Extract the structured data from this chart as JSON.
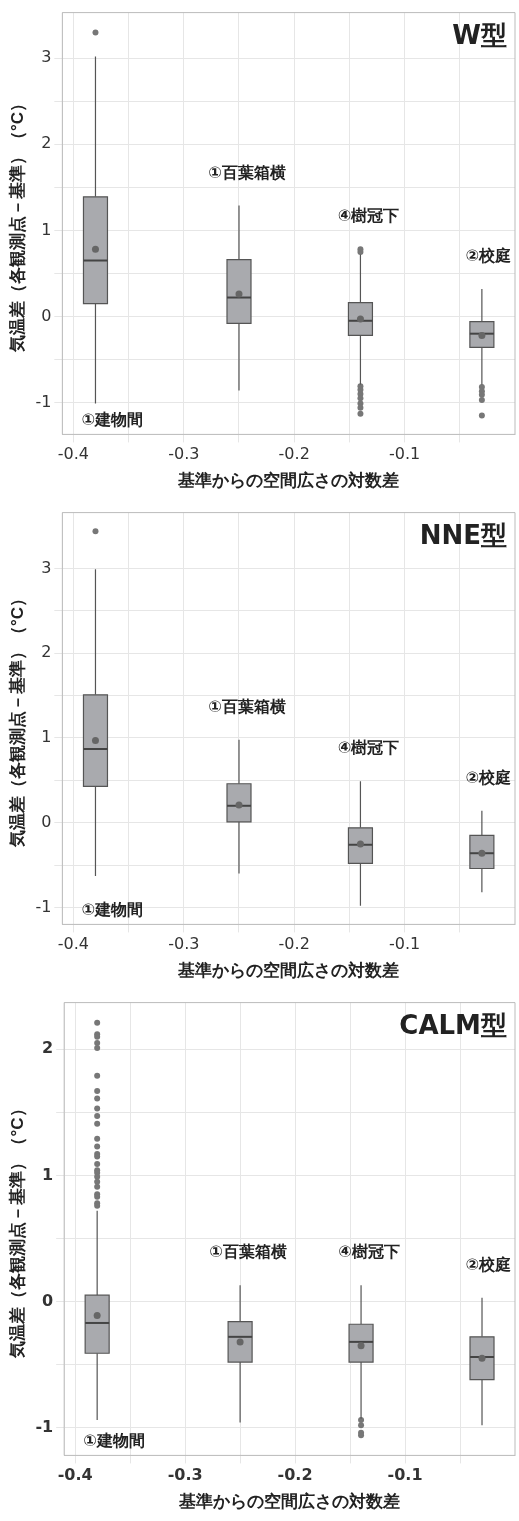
{
  "chart_data": [
    {
      "type": "box",
      "title": "W型",
      "xlabel": "基準からの空間広さの対数差",
      "ylabel": "気温差（各観測点－基準）（°C）",
      "color": "#a9aaae",
      "grid": true,
      "x": [
        -0.38,
        -0.25,
        -0.14,
        -0.03
      ],
      "boxes": [
        {
          "low": -1.01,
          "q1": 0.15,
          "median": 0.65,
          "q3": 1.39,
          "high": 3.02,
          "mean": 0.78,
          "outliers": [
            3.3
          ]
        },
        {
          "low": -0.86,
          "q1": -0.08,
          "median": 0.22,
          "q3": 0.66,
          "high": 1.29,
          "mean": 0.26
        },
        {
          "low": -0.79,
          "q1": -0.22,
          "median": -0.05,
          "q3": 0.16,
          "high": 0.72,
          "mean": -0.03,
          "outliers": [
            0.78,
            0.75,
            -0.81,
            -0.85,
            -0.9,
            -0.95,
            -1.01,
            -1.06,
            -1.13
          ]
        },
        {
          "low": -0.79,
          "q1": -0.36,
          "median": -0.2,
          "q3": -0.06,
          "high": 0.32,
          "mean": -0.22,
          "outliers": [
            -0.82,
            -0.87,
            -0.91,
            -0.97,
            -1.15
          ]
        }
      ],
      "xlim": [
        -0.41,
        0.0
      ],
      "xticks": [
        -0.4,
        {
          "value": -0.35,
          "label": null
        },
        -0.3,
        {
          "value": -0.25,
          "label": null
        },
        -0.2,
        {
          "value": -0.15,
          "label": null
        },
        -0.1,
        {
          "value": -0.05,
          "label": null
        }
      ],
      "ylim": [
        -1.37,
        3.53
      ],
      "yticks": [
        -1,
        {
          "value": -0.5,
          "label": null
        },
        0,
        {
          "value": 0.5,
          "label": null
        },
        1,
        {
          "value": 1.5,
          "label": null
        },
        2,
        {
          "value": 2.5,
          "label": null
        },
        3
      ],
      "annotations": [
        "①建物間",
        "①百葉箱横",
        "④樹冠下",
        "②校庭"
      ]
    },
    {
      "type": "box",
      "title": "NNE型",
      "xlabel": "基準からの空間広さの対数差",
      "ylabel": "気温差（各観測点－基準）（°C）",
      "color": "#a9aaae",
      "grid": true,
      "x": [
        -0.38,
        -0.25,
        -0.14,
        -0.03
      ],
      "boxes": [
        {
          "low": -0.63,
          "q1": 0.43,
          "median": 0.87,
          "q3": 1.51,
          "high": 2.99,
          "mean": 0.97,
          "outliers": [
            3.44
          ]
        },
        {
          "low": -0.6,
          "q1": 0.01,
          "median": 0.2,
          "q3": 0.46,
          "high": 0.98,
          "mean": 0.21
        },
        {
          "low": -0.98,
          "q1": -0.48,
          "median": -0.26,
          "q3": -0.06,
          "high": 0.49,
          "mean": -0.25
        },
        {
          "low": -0.82,
          "q1": -0.54,
          "median": -0.36,
          "q3": -0.15,
          "high": 0.14,
          "mean": -0.36
        }
      ],
      "xlim": [
        -0.41,
        0.0
      ],
      "xticks": [
        -0.4,
        {
          "value": -0.35,
          "label": null
        },
        -0.3,
        {
          "value": -0.25,
          "label": null
        },
        -0.2,
        {
          "value": -0.15,
          "label": null
        },
        -0.1,
        {
          "value": -0.05,
          "label": null
        }
      ],
      "ylim": [
        -1.2,
        3.66
      ],
      "yticks": [
        -1,
        {
          "value": -0.5,
          "label": null
        },
        0,
        {
          "value": 0.5,
          "label": null
        },
        1,
        {
          "value": 1.5,
          "label": null
        },
        2,
        {
          "value": 2.5,
          "label": null
        },
        3
      ],
      "annotations": [
        "①建物間",
        "①百葉箱横",
        "④樹冠下",
        "②校庭"
      ]
    },
    {
      "type": "box",
      "title": "CALM型",
      "xlabel": "基準からの空間広さの対数差",
      "ylabel": "気温差（各観測点－基準）（°C）",
      "color": "#a9aaae",
      "grid": true,
      "x": [
        -0.38,
        -0.25,
        -0.14,
        -0.03
      ],
      "boxes": [
        {
          "low": -0.94,
          "q1": -0.41,
          "median": -0.17,
          "q3": 0.05,
          "high": 0.72,
          "mean": -0.11,
          "outliers": [
            2.21,
            2.12,
            2.1,
            2.05,
            2.01,
            1.79,
            1.67,
            1.61,
            1.53,
            1.47,
            1.41,
            1.29,
            1.23,
            1.17,
            1.15,
            1.09,
            1.04,
            1.02,
            0.99,
            0.95,
            0.91,
            0.85,
            0.83,
            0.78,
            0.76
          ]
        },
        {
          "low": -0.96,
          "q1": -0.48,
          "median": -0.28,
          "q3": -0.16,
          "high": 0.13,
          "mean": -0.32
        },
        {
          "low": -0.93,
          "q1": -0.48,
          "median": -0.32,
          "q3": -0.18,
          "high": 0.13,
          "mean": -0.35,
          "outliers": [
            -0.94,
            -0.98,
            -1.04,
            -1.06
          ]
        },
        {
          "low": -0.98,
          "q1": -0.62,
          "median": -0.44,
          "q3": -0.28,
          "high": 0.03,
          "mean": -0.45
        }
      ],
      "xlim": [
        -0.41,
        0.0
      ],
      "xticks": [
        -0.4,
        {
          "value": -0.35,
          "label": null
        },
        -0.3,
        {
          "value": -0.25,
          "label": null
        },
        -0.2,
        {
          "value": -0.15,
          "label": null
        },
        -0.1,
        {
          "value": -0.05,
          "label": null
        }
      ],
      "ylim": [
        -1.22,
        2.37
      ],
      "yticks": [
        -1,
        {
          "value": -0.5,
          "label": null
        },
        0,
        {
          "value": 0.5,
          "label": null
        },
        1,
        {
          "value": 1.5,
          "label": null
        },
        2
      ],
      "annotations": [
        "①建物間",
        "①百葉箱横",
        "④樹冠下",
        "②校庭"
      ]
    }
  ]
}
